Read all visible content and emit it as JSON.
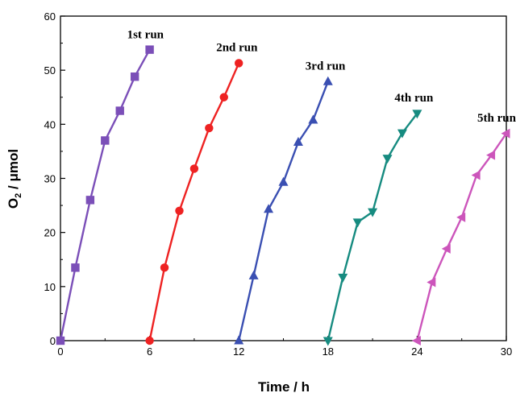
{
  "chart_data": {
    "type": "line",
    "title": "",
    "xlabel": "Time / h",
    "ylabel": {
      "main": "O",
      "sub": "2",
      "rest": " / μmol"
    },
    "xlim": [
      0,
      30
    ],
    "ylim": [
      0,
      60
    ],
    "xticks": [
      "0",
      "6",
      "12",
      "18",
      "24",
      "30"
    ],
    "yticks": [
      "0",
      "10",
      "20",
      "30",
      "40",
      "50",
      "60"
    ],
    "grid": false,
    "series": [
      {
        "name": "1st run",
        "color": "#7b4fb8",
        "marker": "square",
        "x": [
          0,
          1,
          2,
          3,
          4,
          5,
          6
        ],
        "y": [
          0,
          13.5,
          26,
          37,
          42.5,
          48.8,
          53.8
        ]
      },
      {
        "name": "2nd run",
        "color": "#ee2222",
        "marker": "circle",
        "x": [
          6,
          7,
          8,
          9,
          10,
          11,
          12
        ],
        "y": [
          0,
          13.5,
          24,
          31.8,
          39.3,
          45,
          51.3
        ]
      },
      {
        "name": "3rd run",
        "color": "#3a4fb2",
        "marker": "triangle-up",
        "x": [
          12,
          13,
          14,
          15,
          16,
          17,
          18
        ],
        "y": [
          0,
          12,
          24.3,
          29.3,
          36.7,
          40.8,
          47.9
        ]
      },
      {
        "name": "4th run",
        "color": "#168b80",
        "marker": "triangle-down",
        "x": [
          18,
          19,
          20,
          21,
          22,
          23,
          24
        ],
        "y": [
          0,
          11.7,
          21.9,
          23.8,
          33.7,
          38.4,
          42
        ]
      },
      {
        "name": "5th run",
        "color": "#cc55bb",
        "marker": "triangle-left",
        "x": [
          24,
          25,
          26,
          27,
          28,
          29,
          30
        ],
        "y": [
          0,
          10.8,
          17,
          22.8,
          30.6,
          34.3,
          38.3
        ]
      }
    ]
  }
}
